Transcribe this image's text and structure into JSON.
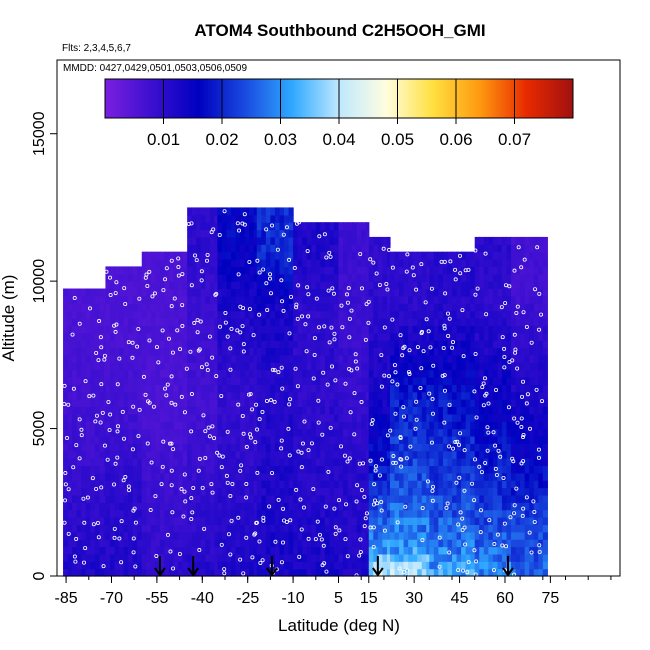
{
  "chart_data": {
    "type": "heatmap",
    "title": "ATOM4 Southbound C2H5OOH_GMI",
    "subtitle_flights": "Flts: 2,3,4,5,6,7",
    "subtitle_dates": "MMDD: 0427,0429,0501,0503,0506,0509",
    "xlabel": "Latitude (deg N)",
    "ylabel": "Altitude (m)",
    "xlim": [
      -88,
      98
    ],
    "ylim": [
      0,
      17500
    ],
    "x_ticks": [
      -85,
      -70,
      -55,
      -40,
      -25,
      -10,
      5,
      15,
      30,
      45,
      60,
      75
    ],
    "y_ticks": [
      0,
      5000,
      10000,
      15000
    ],
    "colorbar": {
      "range": [
        0.0,
        0.08
      ],
      "ticks": [
        "0.01",
        "0.02",
        "0.03",
        "0.04",
        "0.05",
        "0.06",
        "0.07"
      ],
      "tick_values": [
        0.01,
        0.02,
        0.03,
        0.04,
        0.05,
        0.06,
        0.07
      ],
      "colors": [
        "#7b1fe0",
        "#3b0fd0",
        "#0000c0",
        "#1a4be0",
        "#2fa8ff",
        "#bfe8ff",
        "#fffde0",
        "#ffe040",
        "#ff9a10",
        "#e82a00",
        "#a01010"
      ]
    },
    "arrow_latitudes": [
      -54,
      -43,
      -17,
      18,
      61
    ],
    "columns": [
      {
        "lat0": -86,
        "lat1": -72,
        "top": 9600,
        "levels": [
          [
            0,
            0.012
          ],
          [
            3000,
            0.009
          ],
          [
            6000,
            0.007
          ],
          [
            9000,
            0.006
          ]
        ]
      },
      {
        "lat0": -72,
        "lat1": -60,
        "top": 10500,
        "levels": [
          [
            0,
            0.012
          ],
          [
            3000,
            0.01
          ],
          [
            6000,
            0.007
          ],
          [
            9000,
            0.006
          ]
        ]
      },
      {
        "lat0": -60,
        "lat1": -45,
        "top": 11000,
        "levels": [
          [
            0,
            0.01
          ],
          [
            3000,
            0.008
          ],
          [
            6000,
            0.006
          ],
          [
            9000,
            0.006
          ]
        ]
      },
      {
        "lat0": -45,
        "lat1": -35,
        "top": 12300,
        "levels": [
          [
            0,
            0.011
          ],
          [
            3000,
            0.009
          ],
          [
            6000,
            0.007
          ],
          [
            9000,
            0.008
          ],
          [
            11000,
            0.01
          ]
        ]
      },
      {
        "lat0": -35,
        "lat1": -22,
        "top": 12500,
        "levels": [
          [
            0,
            0.012
          ],
          [
            3000,
            0.01
          ],
          [
            6000,
            0.009
          ],
          [
            9000,
            0.012
          ],
          [
            11000,
            0.016
          ]
        ]
      },
      {
        "lat0": -22,
        "lat1": -10,
        "top": 12300,
        "levels": [
          [
            0,
            0.013
          ],
          [
            3000,
            0.012
          ],
          [
            6000,
            0.011
          ],
          [
            9000,
            0.013
          ],
          [
            11000,
            0.02
          ]
        ]
      },
      {
        "lat0": -10,
        "lat1": 5,
        "top": 12000,
        "levels": [
          [
            0,
            0.013
          ],
          [
            3000,
            0.011
          ],
          [
            6000,
            0.01
          ],
          [
            9000,
            0.01
          ],
          [
            11000,
            0.012
          ]
        ]
      },
      {
        "lat0": 5,
        "lat1": 15,
        "top": 12000,
        "levels": [
          [
            0,
            0.012
          ],
          [
            3000,
            0.011
          ],
          [
            6000,
            0.009
          ],
          [
            9000,
            0.008
          ],
          [
            11000,
            0.008
          ]
        ]
      },
      {
        "lat0": 15,
        "lat1": 22,
        "top": 11500,
        "levels": [
          [
            0,
            0.042
          ],
          [
            1000,
            0.03
          ],
          [
            3000,
            0.02
          ],
          [
            6000,
            0.013
          ],
          [
            9000,
            0.01
          ]
        ]
      },
      {
        "lat0": 22,
        "lat1": 35,
        "top": 11000,
        "levels": [
          [
            0,
            0.04
          ],
          [
            1000,
            0.03
          ],
          [
            3000,
            0.024
          ],
          [
            6000,
            0.019
          ],
          [
            9000,
            0.01
          ]
        ]
      },
      {
        "lat0": 35,
        "lat1": 50,
        "top": 11000,
        "levels": [
          [
            0,
            0.032
          ],
          [
            1000,
            0.028
          ],
          [
            3000,
            0.022
          ],
          [
            6000,
            0.018
          ],
          [
            9000,
            0.011
          ]
        ]
      },
      {
        "lat0": 50,
        "lat1": 62,
        "top": 11300,
        "levels": [
          [
            0,
            0.03
          ],
          [
            1000,
            0.026
          ],
          [
            3000,
            0.02
          ],
          [
            6000,
            0.015
          ],
          [
            9000,
            0.01
          ]
        ]
      },
      {
        "lat0": 62,
        "lat1": 74,
        "top": 11300,
        "levels": [
          [
            0,
            0.026
          ],
          [
            2000,
            0.022
          ],
          [
            4000,
            0.016
          ],
          [
            7000,
            0.011
          ],
          [
            10000,
            0.007
          ]
        ]
      }
    ]
  }
}
